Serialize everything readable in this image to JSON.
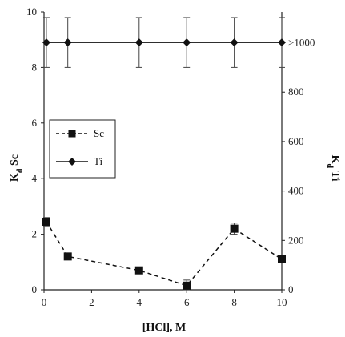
{
  "chart_data": {
    "type": "line",
    "xlabel": "[HCl], M",
    "ylabel_left": "Kd Sc",
    "ylabel_left_main": "K",
    "ylabel_left_sub": "d",
    "ylabel_left_rest": " Sc",
    "ylabel_right": "Kd Ti",
    "ylabel_right_main": "K",
    "ylabel_right_sub": "d",
    "ylabel_right_rest": " Ti",
    "xlim": [
      0,
      10
    ],
    "ylim_left": [
      0,
      10
    ],
    "ylim_right": [
      0,
      1125
    ],
    "x_ticks": [
      0,
      2,
      4,
      6,
      8,
      10
    ],
    "y_left_ticks": [
      0,
      2,
      4,
      6,
      8,
      10
    ],
    "y_right_ticks": [
      {
        "value": 0,
        "label": "0"
      },
      {
        "value": 200,
        "label": "200"
      },
      {
        "value": 400,
        "label": "400"
      },
      {
        "value": 600,
        "label": "600"
      },
      {
        "value": 800,
        "label": "800"
      },
      {
        "value": 1000,
        "label": ">1000"
      }
    ],
    "grid": false,
    "legend_position": "middle-left",
    "series": [
      {
        "name": "Sc",
        "axis": "left",
        "style": "dashed",
        "marker": "square",
        "color": "#111111",
        "x": [
          0.1,
          1,
          4,
          6,
          8,
          10
        ],
        "y": [
          2.45,
          1.2,
          0.7,
          0.15,
          2.2,
          1.1
        ],
        "err": [
          0.15,
          0.08,
          0.08,
          0.2,
          0.2,
          0.1
        ]
      },
      {
        "name": "Ti",
        "axis": "left",
        "style": "solid",
        "marker": "diamond",
        "color": "#111111",
        "x": [
          0.1,
          1,
          4,
          6,
          8,
          10
        ],
        "y": [
          8.9,
          8.9,
          8.9,
          8.9,
          8.9,
          8.9
        ],
        "err": [
          0.9,
          0.9,
          0.9,
          0.9,
          0.9,
          0.9
        ]
      }
    ]
  }
}
